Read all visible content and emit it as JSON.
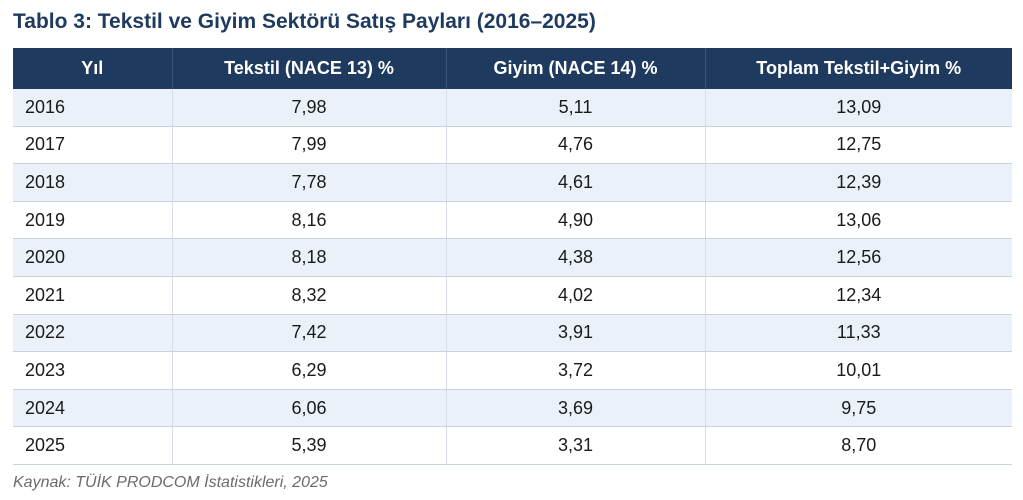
{
  "title": "Tablo 3: Tekstil ve Giyim Sektörü Satış Payları (2016–2025)",
  "table": {
    "headers": [
      "Yıl",
      "Tekstil (NACE 13) %",
      "Giyim (NACE 14) %",
      "Toplam Tekstil+Giyim %"
    ],
    "rows": [
      [
        "2016",
        "7,98",
        "5,11",
        "13,09"
      ],
      [
        "2017",
        "7,99",
        "4,76",
        "12,75"
      ],
      [
        "2018",
        "7,78",
        "4,61",
        "12,39"
      ],
      [
        "2019",
        "8,16",
        "4,90",
        "13,06"
      ],
      [
        "2020",
        "8,18",
        "4,38",
        "12,56"
      ],
      [
        "2021",
        "8,32",
        "4,02",
        "12,34"
      ],
      [
        "2022",
        "7,42",
        "3,91",
        "11,33"
      ],
      [
        "2023",
        "6,29",
        "3,72",
        "10,01"
      ],
      [
        "2024",
        "6,06",
        "3,69",
        "9,75"
      ],
      [
        "2025",
        "5,39",
        "3,31",
        "8,70"
      ]
    ]
  },
  "source": "Kaynak: TÜİK PRODCOM İstatistikleri, 2025",
  "colors": {
    "header_bg": "#1f3a5f",
    "title": "#1f3a5f",
    "row_alt": "#eaf1f9"
  }
}
